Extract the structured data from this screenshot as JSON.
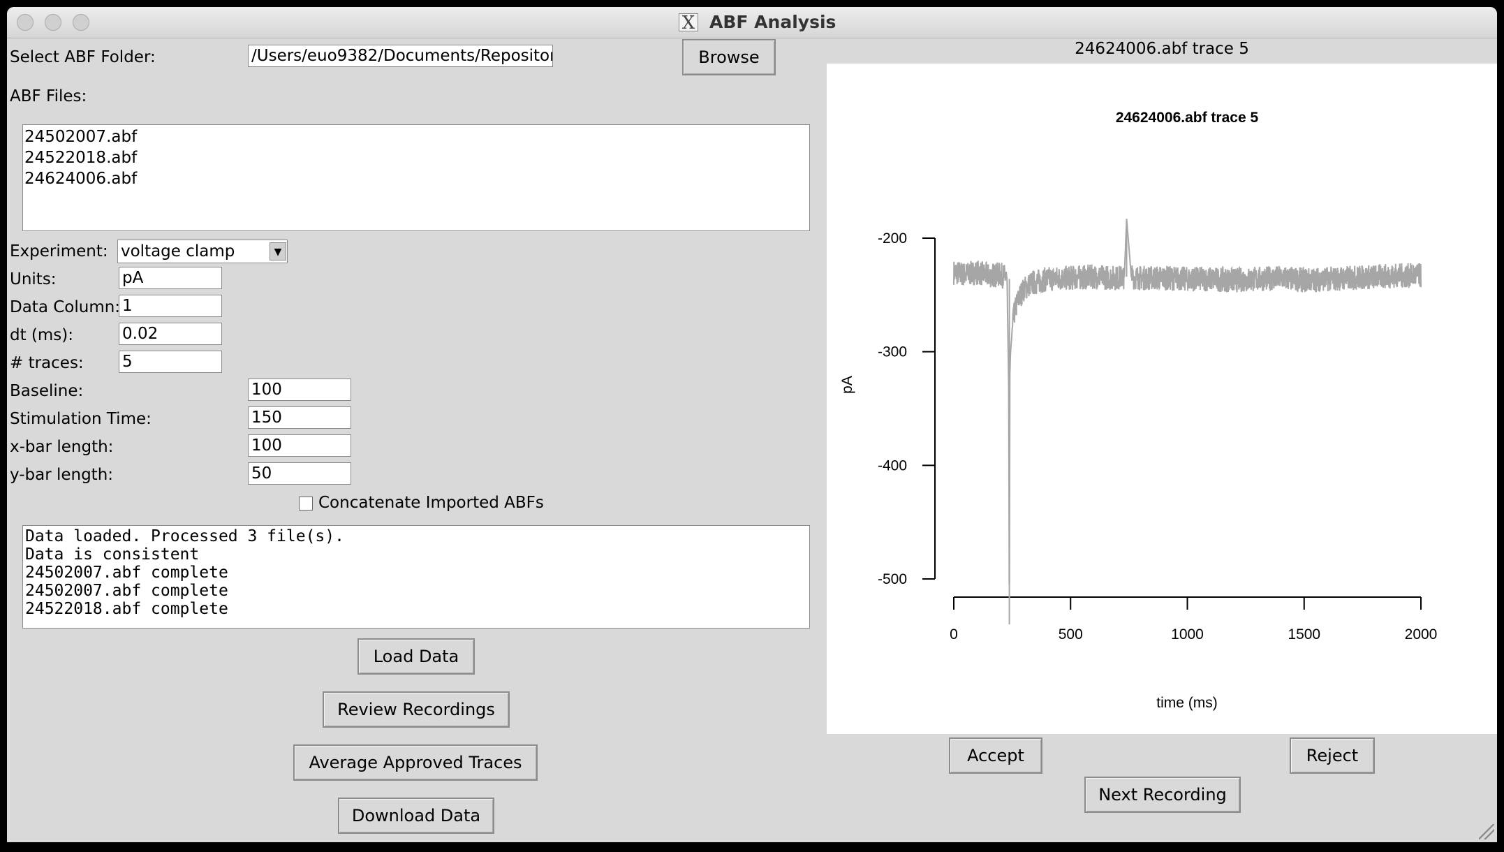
{
  "window": {
    "title": "ABF Analysis"
  },
  "left": {
    "folder_label": "Select ABF Folder:",
    "folder_value": "/Users/euo9382/Documents/Repositor",
    "browse_label": "Browse",
    "files_label": "ABF Files:",
    "files": [
      "24502007.abf",
      "24522018.abf",
      "24624006.abf"
    ],
    "experiment_label": "Experiment:",
    "experiment_value": "voltage clamp",
    "units_label": "Units:",
    "units_value": "pA",
    "data_column_label": "Data Column:",
    "data_column_value": "1",
    "dt_label": "dt (ms):",
    "dt_value": "0.02",
    "traces_label": "# traces:",
    "traces_value": "5",
    "baseline_label": "Baseline:",
    "baseline_value": "100",
    "stim_label": "Stimulation Time:",
    "stim_value": "150",
    "xbar_label": "x-bar length:",
    "xbar_value": "100",
    "ybar_label": "y-bar length:",
    "ybar_value": "50",
    "concat_label": "Concatenate Imported ABFs",
    "log": [
      "Data loaded. Processed 3 file(s).",
      "Data is consistent",
      "24502007.abf complete",
      "24502007.abf complete",
      "24522018.abf complete"
    ],
    "load_label": "Load Data",
    "review_label": "Review Recordings",
    "average_label": "Average Approved Traces",
    "download_label": "Download Data"
  },
  "right": {
    "header": "24624006.abf trace 5",
    "accept_label": "Accept",
    "reject_label": "Reject",
    "next_label": "Next Recording"
  },
  "chart_data": {
    "type": "line",
    "title": "24624006.abf trace 5",
    "xlabel": "time (ms)",
    "ylabel": "pA",
    "xlim": [
      0,
      2000
    ],
    "ylim": [
      -540,
      -180
    ],
    "xticks": [
      0,
      500,
      1000,
      1500,
      2000
    ],
    "yticks": [
      -200,
      -300,
      -400,
      -500
    ],
    "grid": false,
    "color": "#a6a6a6",
    "series": [
      {
        "x": [
          0,
          50,
          100,
          150,
          200,
          228,
          235,
          238,
          240,
          243,
          247,
          250,
          255,
          260,
          270,
          280,
          300,
          330,
          360,
          400,
          500,
          600,
          700,
          730,
          740,
          760,
          800,
          900,
          1000,
          1100,
          1200,
          1300,
          1400,
          1500,
          1600,
          1700,
          1800,
          1900,
          2000
        ],
        "y": [
          -230,
          -232,
          -230,
          -233,
          -232,
          -235,
          -330,
          -540,
          -320,
          -300,
          -290,
          -280,
          -272,
          -265,
          -258,
          -252,
          -245,
          -240,
          -238,
          -236,
          -235,
          -234,
          -235,
          -234,
          -183,
          -234,
          -235,
          -235,
          -236,
          -236,
          -237,
          -236,
          -235,
          -237,
          -236,
          -235,
          -234,
          -233,
          -233
        ]
      }
    ]
  }
}
